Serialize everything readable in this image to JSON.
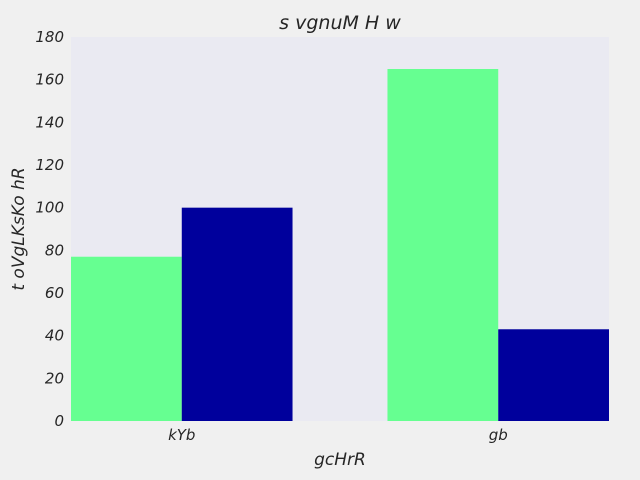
{
  "chart_data": {
    "type": "bar",
    "title": "s vgnuM H w",
    "xlabel": "gcHrR",
    "ylabel": "t  oVgLKsKo hR",
    "categories": [
      "kYb",
      "gb"
    ],
    "series": [
      {
        "values": [
          77,
          165
        ],
        "color": "#66ff91"
      },
      {
        "values": [
          100,
          43
        ],
        "color": "#00009c"
      }
    ],
    "ylim": [
      0,
      180
    ],
    "yticks": [
      0,
      20,
      40,
      60,
      80,
      100,
      120,
      140,
      160,
      180
    ],
    "grid": false,
    "legend": "none"
  },
  "colors": {
    "figure_background": "#f0f0f0",
    "plot_background": "#eaeaf2",
    "text": "#262626"
  }
}
